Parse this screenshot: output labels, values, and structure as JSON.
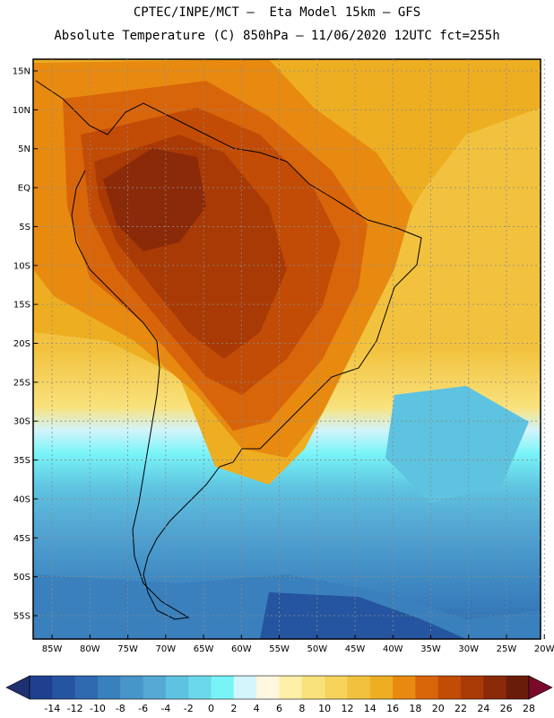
{
  "header": {
    "line1": "CPTEC/INPE/MCT –  Eta Model 15km – GFS",
    "line2": "Absolute Temperature (C) 850hPa – 11/06/2020 12UTC fct=255h"
  },
  "map": {
    "lat_labels": [
      "15N",
      "10N",
      "5N",
      "EQ",
      "5S",
      "10S",
      "15S",
      "20S",
      "25S",
      "30S",
      "35S",
      "40S",
      "45S",
      "50S",
      "55S"
    ],
    "lon_labels": [
      "85W",
      "80W",
      "75W",
      "70W",
      "65W",
      "60W",
      "55W",
      "50W",
      "45W",
      "40W",
      "35W",
      "30W",
      "25W",
      "20W"
    ],
    "lat_values": [
      15,
      10,
      5,
      0,
      -5,
      -10,
      -15,
      -20,
      -25,
      -30,
      -35,
      -40,
      -45,
      -50,
      -55
    ],
    "lon_values": [
      -85,
      -80,
      -75,
      -70,
      -65,
      -60,
      -55,
      -50,
      -45,
      -40,
      -35,
      -30,
      -25,
      -20
    ]
  },
  "colorbar": {
    "ticks": [
      "-14",
      "-12",
      "-10",
      "-8",
      "-6",
      "-4",
      "-2",
      "0",
      "2",
      "4",
      "6",
      "8",
      "10",
      "12",
      "14",
      "16",
      "18",
      "20",
      "22",
      "24",
      "26",
      "28"
    ],
    "colors": [
      "#1f3f8f",
      "#2555a0",
      "#2f6ab0",
      "#3a80bd",
      "#4795c9",
      "#55a9d4",
      "#5ec3e0",
      "#6bd8ea",
      "#78f4f8",
      "#d2f4fb",
      "#fff7e0",
      "#fff0a8",
      "#f9e27c",
      "#f6d45c",
      "#f2c23e",
      "#eeae22",
      "#e88a10",
      "#d9650a",
      "#c24c06",
      "#a93a05",
      "#8b2a08",
      "#6a1c0a"
    ],
    "end_low": "#1f3070",
    "end_high": "#7a0a2a",
    "unit": "C"
  }
}
